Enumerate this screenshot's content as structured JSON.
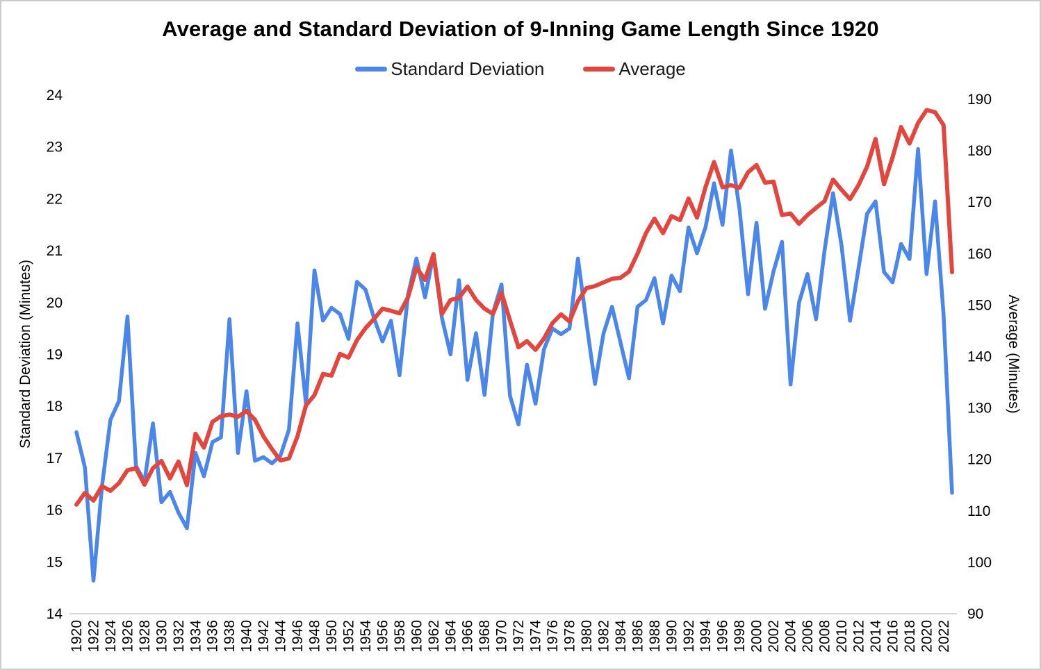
{
  "chart_data": {
    "type": "line",
    "title": "Average and Standard Deviation of 9-Inning Game Length Since 1920",
    "legend_position": "top",
    "grid": false,
    "x_axis": {
      "tick_labels": [
        "1920",
        "1922",
        "1924",
        "1926",
        "1928",
        "1930",
        "1932",
        "1934",
        "1936",
        "1938",
        "1940",
        "1942",
        "1944",
        "1946",
        "1948",
        "1950",
        "1952",
        "1954",
        "1956",
        "1958",
        "1960",
        "1962",
        "1964",
        "1966",
        "1968",
        "1970",
        "1972",
        "1974",
        "1976",
        "1978",
        "1980",
        "1982",
        "1984",
        "1986",
        "1988",
        "1990",
        "1992",
        "1994",
        "1996",
        "1998",
        "2000",
        "2002",
        "2004",
        "2006",
        "2008",
        "2010",
        "2012",
        "2014",
        "2016",
        "2018",
        "2020",
        "2022"
      ],
      "label_rotation_degrees": -90
    },
    "left_axis": {
      "label": "Standard Deviation (Minutes)",
      "min": 14,
      "max": 24,
      "ticks": [
        14,
        15,
        16,
        17,
        18,
        19,
        20,
        21,
        22,
        23,
        24
      ]
    },
    "right_axis": {
      "label": "Average (Minutes)",
      "min": 90,
      "max": 190,
      "ticks": [
        90,
        100,
        110,
        120,
        130,
        140,
        150,
        160,
        170,
        180,
        190
      ]
    },
    "x": [
      1920,
      1921,
      1922,
      1923,
      1924,
      1925,
      1926,
      1927,
      1928,
      1929,
      1930,
      1931,
      1932,
      1933,
      1934,
      1935,
      1936,
      1937,
      1938,
      1939,
      1940,
      1941,
      1942,
      1943,
      1944,
      1945,
      1946,
      1947,
      1948,
      1949,
      1950,
      1951,
      1952,
      1953,
      1954,
      1955,
      1956,
      1957,
      1958,
      1959,
      1960,
      1961,
      1962,
      1963,
      1964,
      1965,
      1966,
      1967,
      1968,
      1969,
      1970,
      1971,
      1972,
      1973,
      1974,
      1975,
      1976,
      1977,
      1978,
      1979,
      1980,
      1981,
      1982,
      1983,
      1984,
      1985,
      1986,
      1987,
      1988,
      1989,
      1990,
      1991,
      1992,
      1993,
      1994,
      1995,
      1996,
      1997,
      1998,
      1999,
      2000,
      2001,
      2002,
      2003,
      2004,
      2005,
      2006,
      2007,
      2008,
      2009,
      2010,
      2011,
      2012,
      2013,
      2014,
      2015,
      2016,
      2017,
      2018,
      2019,
      2020,
      2021,
      2022,
      2023
    ],
    "series": [
      {
        "name": "Standard Deviation",
        "axis": "left",
        "color": "#4b86eb",
        "stroke_width": 5.5,
        "values": [
          17.5,
          16.82,
          14.64,
          16.45,
          17.74,
          18.1,
          19.73,
          16.85,
          16.55,
          17.67,
          16.15,
          16.35,
          15.95,
          15.65,
          17.1,
          16.65,
          17.31,
          17.4,
          19.68,
          17.1,
          18.29,
          16.95,
          17.02,
          16.9,
          17.05,
          17.55,
          19.6,
          18.05,
          20.62,
          19.65,
          19.9,
          19.78,
          19.3,
          20.4,
          20.25,
          19.7,
          19.25,
          19.65,
          18.6,
          20.15,
          20.85,
          20.1,
          20.92,
          19.7,
          19.0,
          20.43,
          18.51,
          19.41,
          18.22,
          19.8,
          20.35,
          18.2,
          17.65,
          18.8,
          18.05,
          19.1,
          19.5,
          19.39,
          19.5,
          20.85,
          19.6,
          18.43,
          19.4,
          19.92,
          19.23,
          18.54,
          19.92,
          20.05,
          20.47,
          19.6,
          20.52,
          20.22,
          21.45,
          20.95,
          21.45,
          22.3,
          21.5,
          22.93,
          21.8,
          20.16,
          21.54,
          19.88,
          20.6,
          21.17,
          18.42,
          20.0,
          20.55,
          19.68,
          21.0,
          22.11,
          21.1,
          19.65,
          20.66,
          21.71,
          21.95,
          20.59,
          20.39,
          21.13,
          20.84,
          22.96,
          20.55,
          21.95,
          19.77,
          16.33
        ]
      },
      {
        "name": "Average",
        "axis": "right",
        "color": "#e2463c",
        "stroke_width": 6,
        "values": [
          111.2,
          113.5,
          112.0,
          114.8,
          113.9,
          115.4,
          117.9,
          118.3,
          115.1,
          118.3,
          119.7,
          116.3,
          119.6,
          115.0,
          125.0,
          122.3,
          127.3,
          128.4,
          128.7,
          128.3,
          129.4,
          127.7,
          124.5,
          122.0,
          119.8,
          120.2,
          124.5,
          130.5,
          132.5,
          136.6,
          136.3,
          140.5,
          139.8,
          143.2,
          145.5,
          147.3,
          149.3,
          148.9,
          148.4,
          151.5,
          157.3,
          154.9,
          159.9,
          148.3,
          151.0,
          151.4,
          153.6,
          151.0,
          149.3,
          148.3,
          152.4,
          147.0,
          141.8,
          143.0,
          141.3,
          143.5,
          146.5,
          148.2,
          146.8,
          150.8,
          153.3,
          153.7,
          154.4,
          155.1,
          155.3,
          156.5,
          160.0,
          164.0,
          166.8,
          164.0,
          167.3,
          166.5,
          170.7,
          167.0,
          172.9,
          177.8,
          172.9,
          173.3,
          172.8,
          175.8,
          177.2,
          173.8,
          174.0,
          167.5,
          167.8,
          165.8,
          167.5,
          168.9,
          170.2,
          174.4,
          172.4,
          170.6,
          173.3,
          176.9,
          182.3,
          173.5,
          178.7,
          184.6,
          181.4,
          185.4,
          187.9,
          187.5,
          185.0,
          156.4
        ]
      }
    ],
    "axis_line_color": "#d9d9d9",
    "background_color": "#ffffff"
  }
}
